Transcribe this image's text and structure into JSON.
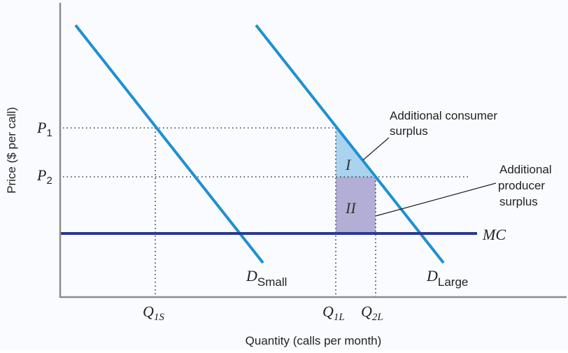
{
  "axes": {
    "ylabel": "Price ($ per call)",
    "xlabel": "Quantity (calls per month)"
  },
  "price_labels": {
    "p1": {
      "main": "P",
      "sub": "1"
    },
    "p2": {
      "main": "P",
      "sub": "2"
    }
  },
  "quantity_labels": {
    "q1s": {
      "main": "Q",
      "sub": "1S"
    },
    "q1l": {
      "main": "Q",
      "sub": "1L"
    },
    "q2l": {
      "main": "Q",
      "sub": "2L"
    }
  },
  "curves": {
    "d_small": {
      "main": "D",
      "sub": "Small"
    },
    "d_large": {
      "main": "D",
      "sub": "Large"
    },
    "mc": "MC"
  },
  "regions": {
    "region_i": "I",
    "region_ii": "II"
  },
  "annotations": {
    "consumer_surplus": [
      "Additional consumer",
      "surplus"
    ],
    "producer_surplus": [
      "Additional",
      "producer",
      "surplus"
    ]
  },
  "colors": {
    "demand": "#1e90d2",
    "mc": "#2b3990",
    "region_i": "#a9d3ef",
    "region_ii": "#b3aed6",
    "axis": "#8c8c8c",
    "dotted": "#333333"
  }
}
